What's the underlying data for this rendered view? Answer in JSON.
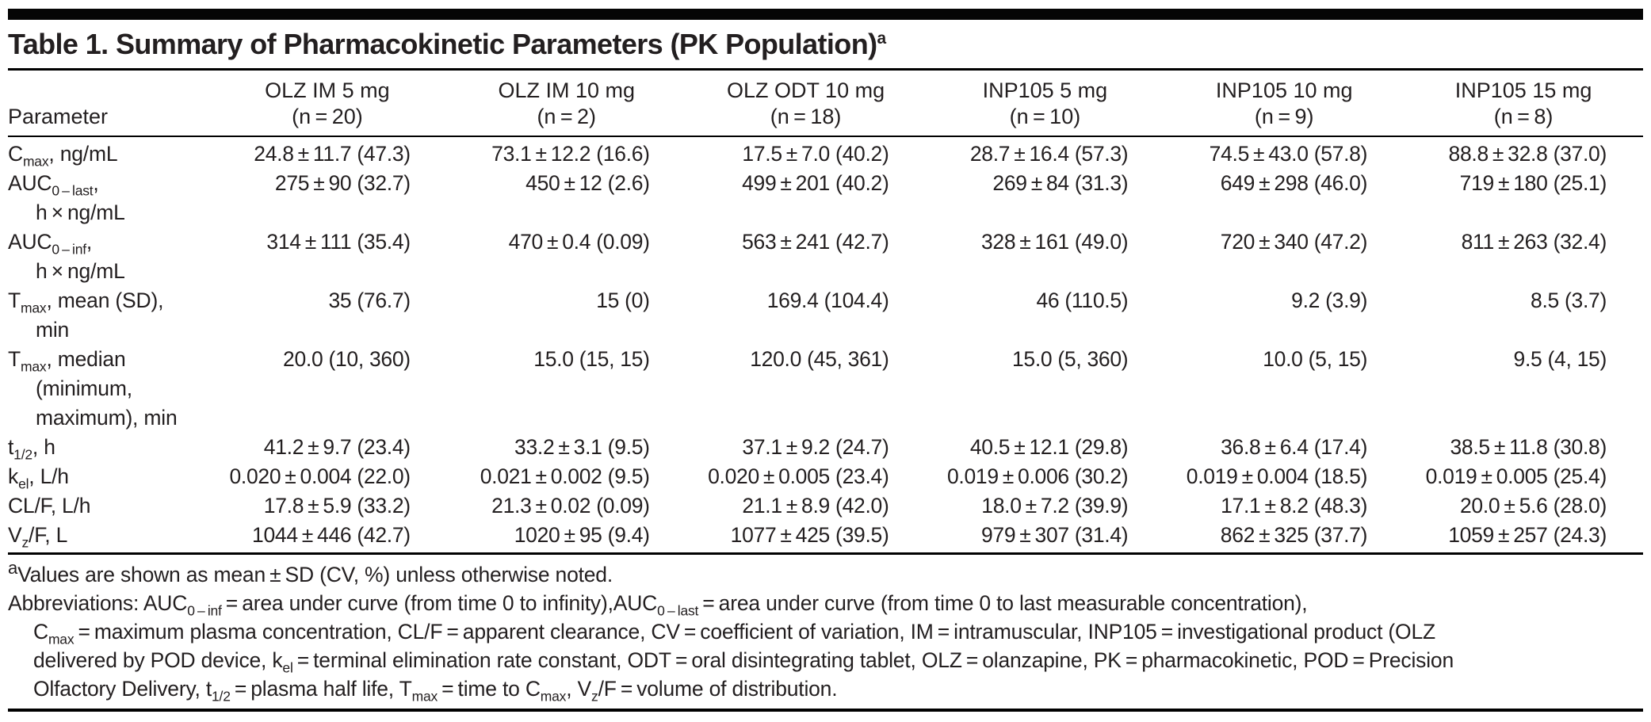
{
  "page": {
    "title_segments": [
      {
        "t": "Table 1. Summary of Pharmacokinetic Parameters (PK Population)"
      },
      {
        "t": "a",
        "sup": true
      }
    ]
  },
  "table": {
    "param_header": "Parameter",
    "columns": [
      {
        "drug": "OLZ IM 5 mg",
        "n": "(n = 20)"
      },
      {
        "drug": "OLZ IM 10 mg",
        "n": "(n = 2)"
      },
      {
        "drug": "OLZ ODT 10 mg",
        "n": "(n = 18)"
      },
      {
        "drug": "INP105 5 mg",
        "n": "(n = 10)"
      },
      {
        "drug": "INP105 10 mg",
        "n": "(n = 9)"
      },
      {
        "drug": "INP105 15 mg",
        "n": "(n = 8)"
      }
    ],
    "rows": [
      {
        "label_lines": [
          [
            {
              "t": "C"
            },
            {
              "t": "max",
              "sub": true
            },
            {
              "t": ", ng/mL"
            }
          ]
        ],
        "values": [
          "24.8 ± 11.7 (47.3)",
          "73.1 ± 12.2 (16.6)",
          "17.5 ± 7.0 (40.2)",
          "28.7 ± 16.4 (57.3)",
          "74.5 ± 43.0 (57.8)",
          "88.8 ± 32.8 (37.0)"
        ]
      },
      {
        "label_lines": [
          [
            {
              "t": "AUC"
            },
            {
              "t": "0 – last",
              "sub": true
            },
            {
              "t": ","
            }
          ],
          [
            {
              "t": "h × ng/mL"
            }
          ]
        ],
        "values": [
          "275 ± 90 (32.7)",
          "450 ± 12 (2.6)",
          "499 ± 201 (40.2)",
          "269 ± 84 (31.3)",
          "649 ± 298 (46.0)",
          "719 ± 180 (25.1)"
        ]
      },
      {
        "label_lines": [
          [
            {
              "t": "AUC"
            },
            {
              "t": "0 – inf",
              "sub": true
            },
            {
              "t": ","
            }
          ],
          [
            {
              "t": "h × ng/mL"
            }
          ]
        ],
        "values": [
          "314 ± 111 (35.4)",
          "470 ± 0.4 (0.09)",
          "563 ± 241 (42.7)",
          "328 ± 161 (49.0)",
          "720 ± 340 (47.2)",
          "811 ± 263 (32.4)"
        ]
      },
      {
        "label_lines": [
          [
            {
              "t": "T"
            },
            {
              "t": "max",
              "sub": true
            },
            {
              "t": ", mean (SD),"
            }
          ],
          [
            {
              "t": "min"
            }
          ]
        ],
        "values": [
          "35 (76.7)",
          "15 (0)",
          "169.4 (104.4)",
          "46 (110.5)",
          "9.2 (3.9)",
          "8.5 (3.7)"
        ]
      },
      {
        "label_lines": [
          [
            {
              "t": "T"
            },
            {
              "t": "max",
              "sub": true
            },
            {
              "t": ", median"
            }
          ],
          [
            {
              "t": "(minimum,"
            }
          ],
          [
            {
              "t": "maximum), min"
            }
          ]
        ],
        "values": [
          "20.0 (10, 360)",
          "15.0 (15, 15)",
          "120.0 (45, 361)",
          "15.0 (5, 360)",
          "10.0 (5, 15)",
          "9.5 (4, 15)"
        ]
      },
      {
        "label_lines": [
          [
            {
              "t": "t"
            },
            {
              "t": "1/2",
              "sub": true
            },
            {
              "t": ", h"
            }
          ]
        ],
        "values": [
          "41.2 ± 9.7 (23.4)",
          "33.2 ± 3.1 (9.5)",
          "37.1 ± 9.2 (24.7)",
          "40.5 ± 12.1 (29.8)",
          "36.8 ± 6.4 (17.4)",
          "38.5 ± 11.8 (30.8)"
        ]
      },
      {
        "label_lines": [
          [
            {
              "t": "k"
            },
            {
              "t": "el",
              "sub": true
            },
            {
              "t": ", L/h"
            }
          ]
        ],
        "values": [
          "0.020 ± 0.004 (22.0)",
          "0.021 ± 0.002 (9.5)",
          "0.020 ± 0.005 (23.4)",
          "0.019 ± 0.006 (30.2)",
          "0.019 ± 0.004 (18.5)",
          "0.019 ± 0.005 (25.4)"
        ]
      },
      {
        "label_lines": [
          [
            {
              "t": "CL/F, L/h"
            }
          ]
        ],
        "values": [
          "17.8 ± 5.9 (33.2)",
          "21.3 ± 0.02 (0.09)",
          "21.1 ± 8.9 (42.0)",
          "18.0 ± 7.2 (39.9)",
          "17.1 ± 8.2 (48.3)",
          "20.0 ± 5.6 (28.0)"
        ]
      },
      {
        "label_lines": [
          [
            {
              "t": "V"
            },
            {
              "t": "z",
              "sub": true
            },
            {
              "t": "/F, L"
            }
          ]
        ],
        "values": [
          "1044 ± 446 (42.7)",
          "1020 ± 95 (9.4)",
          "1077 ± 425 (39.5)",
          "979 ± 307 (31.4)",
          "862 ± 325 (37.7)",
          "1059 ± 257 (24.3)"
        ]
      }
    ]
  },
  "footnotes": {
    "note_a": [
      {
        "t": "a",
        "sup": true
      },
      {
        "t": "Values are shown as mean ± SD (CV, %) unless otherwise noted."
      }
    ],
    "abbreviation_lines": [
      {
        "indent": false,
        "segments": [
          {
            "t": "Abbreviations: AUC"
          },
          {
            "t": "0 – inf",
            "sub": true
          },
          {
            "t": " = area under curve (from time 0 to infinity),AUC"
          },
          {
            "t": "0 – last",
            "sub": true
          },
          {
            "t": " = area under curve (from time 0 to last measurable concentration),"
          }
        ]
      },
      {
        "indent": true,
        "segments": [
          {
            "t": "C"
          },
          {
            "t": "max",
            "sub": true
          },
          {
            "t": " = maximum plasma concentration, CL/F = apparent clearance, CV = coefficient of variation, IM = intramuscular, INP105 = investigational product (OLZ"
          }
        ]
      },
      {
        "indent": true,
        "segments": [
          {
            "t": "delivered by POD device, k"
          },
          {
            "t": "el",
            "sub": true
          },
          {
            "t": " = terminal elimination rate constant, ODT = oral disintegrating tablet, OLZ = olanzapine, PK = pharmacokinetic, POD = Precision"
          }
        ]
      },
      {
        "indent": true,
        "segments": [
          {
            "t": "Olfactory Delivery, t"
          },
          {
            "t": "1/2",
            "sub": true
          },
          {
            "t": " = plasma half life, T"
          },
          {
            "t": "max",
            "sub": true
          },
          {
            "t": " = time to C"
          },
          {
            "t": "max",
            "sub": true
          },
          {
            "t": ", V"
          },
          {
            "t": "z",
            "sub": true
          },
          {
            "t": "/F = volume of distribution."
          }
        ]
      }
    ]
  },
  "colors": {
    "background": "#ffffff",
    "text": "#231f20",
    "rule": "#000000"
  }
}
